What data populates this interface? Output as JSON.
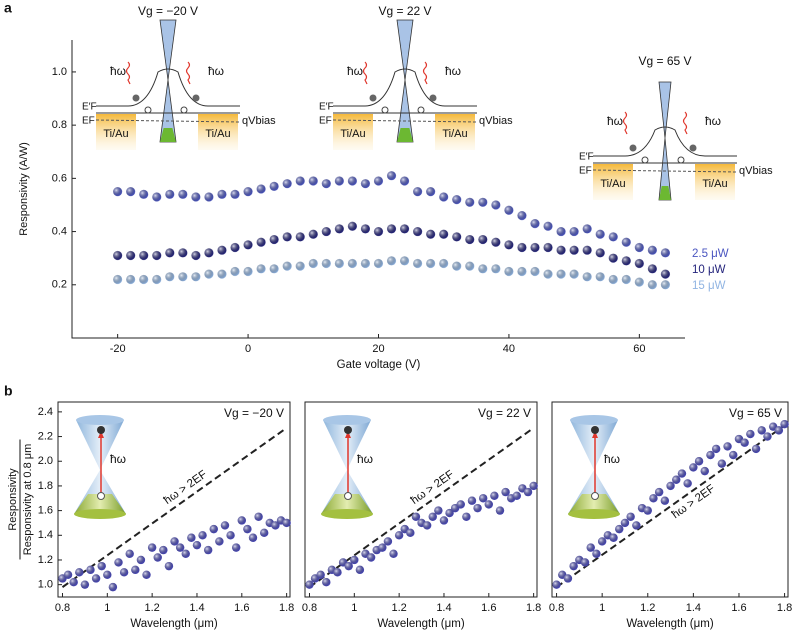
{
  "chart_data": [
    {
      "type": "scatter",
      "panel_label": "a",
      "xlabel": "Gate voltage (V)",
      "ylabel": "Responsivity (A/W)",
      "x": [
        -20,
        -18,
        -16,
        -14,
        -12,
        -10,
        -8,
        -6,
        -4,
        -2,
        0,
        2,
        4,
        6,
        8,
        10,
        12,
        14,
        16,
        18,
        20,
        22,
        24,
        26,
        28,
        30,
        32,
        34,
        36,
        38,
        40,
        42,
        44,
        46,
        48,
        50,
        52,
        54,
        56,
        58,
        60,
        62,
        64
      ],
      "series": [
        {
          "name": "2.5 μW",
          "color": "#4a55c0",
          "values": [
            0.55,
            0.55,
            0.54,
            0.53,
            0.54,
            0.54,
            0.53,
            0.53,
            0.54,
            0.54,
            0.55,
            0.56,
            0.57,
            0.58,
            0.59,
            0.59,
            0.58,
            0.59,
            0.59,
            0.58,
            0.59,
            0.61,
            0.59,
            0.55,
            0.55,
            0.53,
            0.52,
            0.51,
            0.51,
            0.5,
            0.48,
            0.46,
            0.43,
            0.42,
            0.4,
            0.4,
            0.41,
            0.39,
            0.38,
            0.36,
            0.34,
            0.33,
            0.32
          ]
        },
        {
          "name": "10 μW",
          "color": "#24247c",
          "values": [
            0.31,
            0.31,
            0.31,
            0.31,
            0.32,
            0.32,
            0.31,
            0.32,
            0.33,
            0.34,
            0.35,
            0.36,
            0.37,
            0.38,
            0.38,
            0.39,
            0.4,
            0.41,
            0.42,
            0.41,
            0.4,
            0.41,
            0.41,
            0.4,
            0.39,
            0.39,
            0.38,
            0.37,
            0.37,
            0.36,
            0.35,
            0.34,
            0.34,
            0.34,
            0.33,
            0.33,
            0.33,
            0.32,
            0.3,
            0.29,
            0.28,
            0.26,
            0.24
          ]
        },
        {
          "name": "15 μW",
          "color": "#90b4e2",
          "values": [
            0.22,
            0.22,
            0.22,
            0.22,
            0.23,
            0.23,
            0.23,
            0.24,
            0.24,
            0.25,
            0.25,
            0.26,
            0.26,
            0.27,
            0.27,
            0.28,
            0.28,
            0.28,
            0.28,
            0.28,
            0.28,
            0.29,
            0.29,
            0.28,
            0.28,
            0.28,
            0.27,
            0.27,
            0.26,
            0.26,
            0.25,
            0.25,
            0.25,
            0.24,
            0.24,
            0.24,
            0.23,
            0.23,
            0.22,
            0.22,
            0.21,
            0.2,
            0.2
          ]
        }
      ],
      "xlim": [
        -27,
        67
      ],
      "ylim": [
        0,
        1.12
      ],
      "xticks": [
        -20,
        0,
        20,
        40,
        60
      ],
      "yticks": [
        0.2,
        0.4,
        0.6,
        0.8,
        {
          "value": 1,
          "label": "1.0"
        }
      ],
      "insets": [
        {
          "gate": "Vg = −20 V",
          "photon_left": "ħω",
          "photon_right": "ħω",
          "fermi_shifted": "E′F",
          "fermi": "EF",
          "contact_left": "Ti/Au",
          "contact_right": "Ti/Au",
          "bias": "qVbias"
        },
        {
          "gate": "Vg = 22 V",
          "photon_left": "ħω",
          "photon_right": "ħω",
          "fermi_shifted": "E′F",
          "fermi": "EF",
          "contact_left": "Ti/Au",
          "contact_right": "Ti/Au",
          "bias": "qVbias"
        },
        {
          "gate": "Vg = 65 V",
          "photon_left": "ħω",
          "photon_right": "ħω",
          "fermi_shifted": "E′F",
          "fermi": "EF",
          "contact_left": "Ti/Au",
          "contact_right": "Ti/Au",
          "bias": "qVbias"
        }
      ]
    },
    {
      "type": "scatter",
      "panel_label": "b",
      "title": "Vg = −20 V",
      "annotation": "ħω > 2EF",
      "inset_label": "ħω",
      "xlabel": "Wavelength (μm)",
      "ylabel": "Responsivity",
      "ylabel_denominator": "Responsivity at 0.8 μm",
      "color": "#4a4ab8",
      "x": [
        0.8,
        0.825,
        0.85,
        0.875,
        0.9,
        0.925,
        0.95,
        0.975,
        1.0,
        1.025,
        1.05,
        1.075,
        1.1,
        1.125,
        1.15,
        1.175,
        1.2,
        1.225,
        1.25,
        1.275,
        1.3,
        1.325,
        1.35,
        1.375,
        1.4,
        1.425,
        1.45,
        1.475,
        1.5,
        1.525,
        1.55,
        1.575,
        1.6,
        1.625,
        1.65,
        1.675,
        1.7,
        1.725,
        1.75,
        1.775,
        1.8
      ],
      "values": [
        1.05,
        1.08,
        1.02,
        1.1,
        1.0,
        1.12,
        1.05,
        1.15,
        1.08,
        0.98,
        1.18,
        1.1,
        1.25,
        1.12,
        1.2,
        1.08,
        1.3,
        1.22,
        1.28,
        1.15,
        1.35,
        1.3,
        1.25,
        1.38,
        1.32,
        1.4,
        1.28,
        1.45,
        1.35,
        1.48,
        1.4,
        1.3,
        1.52,
        1.45,
        1.38,
        1.55,
        1.42,
        1.5,
        1.48,
        1.52,
        1.5
      ],
      "ref_line": {
        "x": [
          0.8,
          1.8
        ],
        "y": [
          0.98,
          2.27
        ]
      },
      "xlim": [
        0.78,
        1.815
      ],
      "ylim": [
        0.9,
        2.48
      ],
      "xticks": [
        0.8,
        1,
        1.2,
        1.4,
        1.6,
        1.8
      ],
      "yticks": [
        {
          "value": 1,
          "label": "1.0"
        },
        1.2,
        1.4,
        1.6,
        1.8,
        {
          "value": 2,
          "label": "2.0"
        },
        2.2,
        2.4
      ]
    },
    {
      "type": "scatter",
      "title": "Vg = 22 V",
      "annotation": "ħω > 2EF",
      "inset_label": "ħω",
      "xlabel": "Wavelength (μm)",
      "color": "#4a4ab8",
      "x": [
        0.8,
        0.825,
        0.85,
        0.875,
        0.9,
        0.925,
        0.95,
        0.975,
        1.0,
        1.025,
        1.05,
        1.075,
        1.1,
        1.125,
        1.15,
        1.175,
        1.2,
        1.225,
        1.25,
        1.275,
        1.3,
        1.325,
        1.35,
        1.375,
        1.4,
        1.425,
        1.45,
        1.475,
        1.5,
        1.525,
        1.55,
        1.575,
        1.6,
        1.625,
        1.65,
        1.675,
        1.7,
        1.725,
        1.75,
        1.775,
        1.8
      ],
      "values": [
        1.0,
        1.05,
        1.08,
        1.02,
        1.12,
        1.1,
        1.18,
        1.15,
        1.2,
        1.12,
        1.25,
        1.22,
        1.28,
        1.3,
        1.35,
        1.25,
        1.4,
        1.45,
        1.42,
        1.55,
        1.5,
        1.48,
        1.55,
        1.6,
        1.52,
        1.58,
        1.62,
        1.65,
        1.55,
        1.68,
        1.62,
        1.7,
        1.65,
        1.72,
        1.6,
        1.75,
        1.7,
        1.72,
        1.78,
        1.75,
        1.8
      ],
      "ref_line": {
        "x": [
          0.8,
          1.8
        ],
        "y": [
          0.98,
          2.27
        ]
      },
      "xlim": [
        0.78,
        1.815
      ],
      "ylim": [
        0.9,
        2.48
      ],
      "xticks": [
        0.8,
        1,
        1.2,
        1.4,
        1.6,
        1.8
      ]
    },
    {
      "type": "scatter",
      "title": "Vg = 65 V",
      "annotation": "ħω > 2EF",
      "inset_label": "ħω",
      "xlabel": "Wavelength (μm)",
      "color": "#4a4ab8",
      "x": [
        0.8,
        0.825,
        0.85,
        0.875,
        0.9,
        0.925,
        0.95,
        0.975,
        1.0,
        1.025,
        1.05,
        1.075,
        1.1,
        1.125,
        1.15,
        1.175,
        1.2,
        1.225,
        1.25,
        1.275,
        1.3,
        1.325,
        1.35,
        1.375,
        1.4,
        1.425,
        1.45,
        1.475,
        1.5,
        1.525,
        1.55,
        1.575,
        1.6,
        1.625,
        1.65,
        1.675,
        1.7,
        1.725,
        1.75,
        1.775,
        1.8
      ],
      "values": [
        1.0,
        1.08,
        1.05,
        1.15,
        1.2,
        1.18,
        1.3,
        1.25,
        1.35,
        1.4,
        1.38,
        1.45,
        1.5,
        1.55,
        1.48,
        1.62,
        1.6,
        1.7,
        1.75,
        1.68,
        1.8,
        1.85,
        1.9,
        1.82,
        1.95,
        2.0,
        1.92,
        2.05,
        2.1,
        1.98,
        2.12,
        2.05,
        2.18,
        2.15,
        2.22,
        2.1,
        2.25,
        2.2,
        2.28,
        2.25,
        2.3
      ],
      "ref_line": {
        "x": [
          0.8,
          1.8
        ],
        "y": [
          0.98,
          2.29
        ]
      },
      "xlim": [
        0.78,
        1.815
      ],
      "ylim": [
        0.9,
        2.48
      ],
      "xticks": [
        0.8,
        1,
        1.2,
        1.4,
        1.6,
        1.8
      ]
    }
  ]
}
